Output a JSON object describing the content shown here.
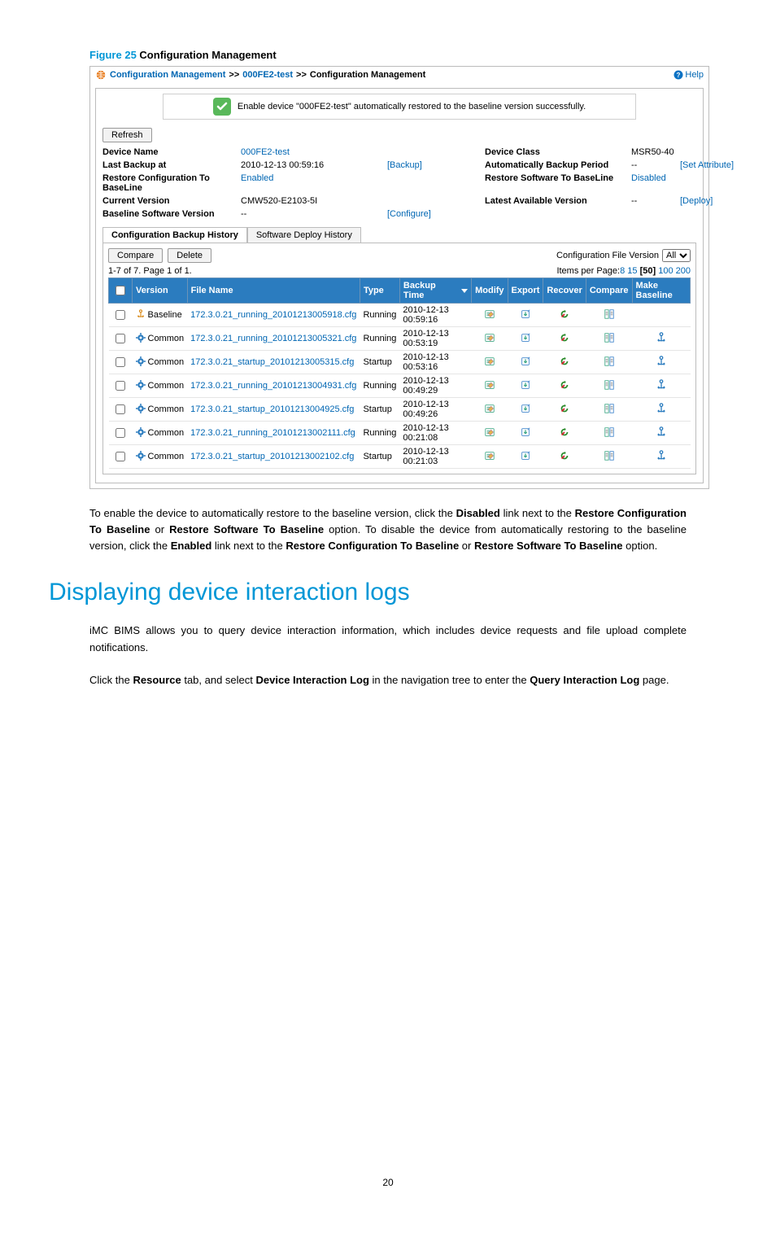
{
  "figure": {
    "num": "Figure 25",
    "title": "Configuration Management"
  },
  "breadcrumb": {
    "a": "Configuration Management",
    "b": "000FE2-test",
    "c": "Configuration Management",
    "sep": ">>",
    "help": "Help"
  },
  "success_msg": "Enable device \"000FE2-test\" automatically restored to the baseline version successfully.",
  "refresh": "Refresh",
  "info": {
    "device_name_lbl": "Device Name",
    "device_name": "000FE2-test",
    "device_class_lbl": "Device Class",
    "device_class": "MSR50-40",
    "last_backup_lbl": "Last Backup at",
    "last_backup": "2010-12-13 00:59:16",
    "backup_link": "[Backup]",
    "auto_period_lbl": "Automatically Backup Period",
    "auto_period": "--",
    "set_attr": "[Set Attribute]",
    "restore_cfg_lbl": "Restore Configuration To BaseLine",
    "restore_cfg": "Enabled",
    "restore_sw_lbl": "Restore Software To BaseLine",
    "restore_sw": "Disabled",
    "cur_ver_lbl": "Current Version",
    "cur_ver": "CMW520-E2103-5I",
    "latest_lbl": "Latest Available Version",
    "latest": "--",
    "deploy": "[Deploy]",
    "base_sw_lbl": "Baseline Software Version",
    "base_sw": "--",
    "configure": "[Configure]"
  },
  "tabs": {
    "a": "Configuration Backup History",
    "b": "Software Deploy History"
  },
  "actions": {
    "compare": "Compare",
    "delete": "Delete",
    "cfv_lbl": "Configuration File Version",
    "cfv_val": "All"
  },
  "meta": {
    "count": "1-7 of 7. Page 1 of 1.",
    "ipp_lbl": "Items per Page:",
    "ipp_opts": [
      "8",
      "15",
      "[50]",
      "100",
      "200"
    ]
  },
  "cols": {
    "version": "Version",
    "file": "File Name",
    "type": "Type",
    "time": "Backup Time",
    "modify": "Modify",
    "export": "Export",
    "recover": "Recover",
    "compare": "Compare",
    "make": "Make Baseline"
  },
  "rows": [
    {
      "ver": "Baseline",
      "vicon": "anchor",
      "file": "172.3.0.21_running_20101213005918.cfg",
      "type": "Running",
      "time": "2010-12-13 00:59:16",
      "make": false
    },
    {
      "ver": "Common",
      "vicon": "gear",
      "file": "172.3.0.21_running_20101213005321.cfg",
      "type": "Running",
      "time": "2010-12-13 00:53:19",
      "make": true
    },
    {
      "ver": "Common",
      "vicon": "gear",
      "file": "172.3.0.21_startup_20101213005315.cfg",
      "type": "Startup",
      "time": "2010-12-13 00:53:16",
      "make": true
    },
    {
      "ver": "Common",
      "vicon": "gear",
      "file": "172.3.0.21_running_20101213004931.cfg",
      "type": "Running",
      "time": "2010-12-13 00:49:29",
      "make": true
    },
    {
      "ver": "Common",
      "vicon": "gear",
      "file": "172.3.0.21_startup_20101213004925.cfg",
      "type": "Startup",
      "time": "2010-12-13 00:49:26",
      "make": true
    },
    {
      "ver": "Common",
      "vicon": "gear",
      "file": "172.3.0.21_running_20101213002111.cfg",
      "type": "Running",
      "time": "2010-12-13 00:21:08",
      "make": true
    },
    {
      "ver": "Common",
      "vicon": "gear",
      "file": "172.3.0.21_startup_20101213002102.cfg",
      "type": "Startup",
      "time": "2010-12-13 00:21:03",
      "make": true
    }
  ],
  "para1": {
    "t1": "To enable the device to automatically restore to the baseline version, click the ",
    "b1": "Disabled",
    "t2": " link next to the ",
    "b2": "Restore Configuration To Baseline",
    "t3": " or ",
    "b3": "Restore Software To Baseline",
    "t4": " option. To disable the device from automatically restoring to the baseline version, click the ",
    "b4": "Enabled",
    "t5": " link next to the ",
    "b5": "Restore Configuration To Baseline",
    "t6": " or ",
    "b6": "Restore Software To Baseline",
    "t7": " option."
  },
  "h1": "Displaying device interaction logs",
  "para2": "iMC BIMS allows you to query device interaction information, which includes device requests and file upload complete notifications.",
  "para3": {
    "t1": "Click the ",
    "b1": "Resource",
    "t2": " tab, and select ",
    "b2": "Device Interaction Log",
    "t3": " in the navigation tree to enter the ",
    "b3": "Query Interaction Log",
    "t4": " page."
  },
  "page": "20"
}
